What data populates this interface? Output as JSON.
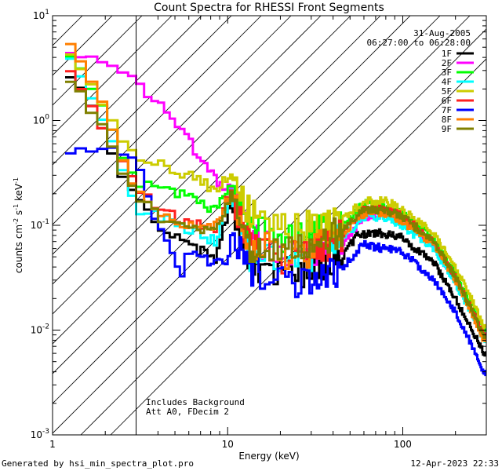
{
  "chart_data": {
    "type": "line",
    "title": "Count Spectra for RHESSI Front Segments",
    "xlabel": "Energy (keV)",
    "ylabel_parts": {
      "base": "counts cm",
      "exp1": "-2",
      "mid": " s",
      "exp2": "-1",
      "end": " keV",
      "exp3": "-1"
    },
    "xscale": "log",
    "yscale": "log",
    "xlim": [
      1,
      300
    ],
    "ylim": [
      0.001,
      10
    ],
    "x_tick_labels": [
      {
        "value": 1,
        "label": "1"
      },
      {
        "value": 10,
        "label": "10"
      },
      {
        "value": 100,
        "label": "100"
      }
    ],
    "y_tick_labels": [
      {
        "value": 0.001,
        "mant": "10",
        "exp": "-3"
      },
      {
        "value": 0.01,
        "mant": "10",
        "exp": "-2"
      },
      {
        "value": 0.1,
        "mant": "10",
        "exp": "-1"
      },
      {
        "value": 1,
        "mant": "10",
        "exp": "0"
      },
      {
        "value": 10,
        "mant": "10",
        "exp": "1"
      }
    ],
    "date": "31-Aug-2005",
    "time_range": "06:27:00 to 06:28:00",
    "hatched_region_upper_energy": 3,
    "annotations": [
      "Includes Background",
      "Att A0, FDecim 2"
    ],
    "series": [
      {
        "name": "1F",
        "color": "#000000",
        "anchors": [
          [
            1.3,
            2.7
          ],
          [
            2.0,
            0.8
          ],
          [
            2.5,
            0.28
          ],
          [
            3.0,
            0.2
          ],
          [
            4.0,
            0.1
          ],
          [
            6.0,
            0.065
          ],
          [
            8.5,
            0.048
          ],
          [
            10.5,
            0.16
          ],
          [
            13,
            0.04
          ],
          [
            20,
            0.035
          ],
          [
            30,
            0.036
          ],
          [
            45,
            0.05
          ],
          [
            55,
            0.082
          ],
          [
            70,
            0.085
          ],
          [
            100,
            0.075
          ],
          [
            150,
            0.045
          ],
          [
            200,
            0.02
          ],
          [
            250,
            0.01
          ],
          [
            290,
            0.006
          ]
        ]
      },
      {
        "name": "2F",
        "color": "#ff00ff",
        "anchors": [
          [
            1.3,
            4.3
          ],
          [
            2.0,
            3.5
          ],
          [
            2.7,
            2.8
          ],
          [
            3.5,
            1.8
          ],
          [
            5.0,
            0.95
          ],
          [
            7.0,
            0.45
          ],
          [
            9.0,
            0.25
          ],
          [
            10.5,
            0.22
          ],
          [
            13,
            0.08
          ],
          [
            20,
            0.055
          ],
          [
            30,
            0.042
          ],
          [
            45,
            0.065
          ],
          [
            60,
            0.12
          ],
          [
            80,
            0.13
          ],
          [
            100,
            0.11
          ],
          [
            150,
            0.065
          ],
          [
            200,
            0.03
          ],
          [
            250,
            0.015
          ],
          [
            290,
            0.009
          ]
        ]
      },
      {
        "name": "3F",
        "color": "#00ff00",
        "anchors": [
          [
            1.3,
            4.0
          ],
          [
            2.0,
            1.2
          ],
          [
            2.5,
            0.45
          ],
          [
            3.0,
            0.27
          ],
          [
            4.0,
            0.22
          ],
          [
            6.0,
            0.19
          ],
          [
            8.5,
            0.14
          ],
          [
            10.5,
            0.25
          ],
          [
            13,
            0.09
          ],
          [
            20,
            0.075
          ],
          [
            30,
            0.085
          ],
          [
            45,
            0.1
          ],
          [
            60,
            0.16
          ],
          [
            80,
            0.15
          ],
          [
            100,
            0.13
          ],
          [
            150,
            0.075
          ],
          [
            200,
            0.035
          ],
          [
            250,
            0.017
          ],
          [
            290,
            0.01
          ]
        ]
      },
      {
        "name": "4F",
        "color": "#00ffff",
        "anchors": [
          [
            1.3,
            4.1
          ],
          [
            2.0,
            0.9
          ],
          [
            2.5,
            0.34
          ],
          [
            3.0,
            0.14
          ],
          [
            4.0,
            0.12
          ],
          [
            6.0,
            0.09
          ],
          [
            8.5,
            0.07
          ],
          [
            10.5,
            0.2
          ],
          [
            13,
            0.05
          ],
          [
            20,
            0.045
          ],
          [
            30,
            0.05
          ],
          [
            45,
            0.075
          ],
          [
            60,
            0.12
          ],
          [
            80,
            0.12
          ],
          [
            100,
            0.1
          ],
          [
            150,
            0.06
          ],
          [
            200,
            0.028
          ],
          [
            250,
            0.014
          ],
          [
            290,
            0.008
          ]
        ]
      },
      {
        "name": "5F",
        "color": "#cccc00",
        "anchors": [
          [
            1.3,
            4.0
          ],
          [
            2.0,
            1.3
          ],
          [
            2.5,
            0.6
          ],
          [
            3.0,
            0.45
          ],
          [
            4.0,
            0.38
          ],
          [
            6.0,
            0.3
          ],
          [
            8.5,
            0.22
          ],
          [
            10.5,
            0.3
          ],
          [
            13,
            0.14
          ],
          [
            20,
            0.1
          ],
          [
            30,
            0.1
          ],
          [
            45,
            0.11
          ],
          [
            60,
            0.17
          ],
          [
            80,
            0.17
          ],
          [
            100,
            0.14
          ],
          [
            150,
            0.085
          ],
          [
            200,
            0.04
          ],
          [
            250,
            0.019
          ],
          [
            290,
            0.011
          ]
        ]
      },
      {
        "name": "6F",
        "color": "#ff2020",
        "anchors": [
          [
            1.3,
            3.0
          ],
          [
            2.0,
            0.75
          ],
          [
            2.5,
            0.4
          ],
          [
            3.0,
            0.24
          ],
          [
            4.0,
            0.14
          ],
          [
            6.0,
            0.11
          ],
          [
            8.5,
            0.09
          ],
          [
            10.5,
            0.22
          ],
          [
            13,
            0.07
          ],
          [
            20,
            0.05
          ],
          [
            30,
            0.05
          ],
          [
            45,
            0.08
          ],
          [
            60,
            0.14
          ],
          [
            80,
            0.14
          ],
          [
            100,
            0.12
          ],
          [
            150,
            0.07
          ],
          [
            200,
            0.032
          ],
          [
            250,
            0.015
          ],
          [
            290,
            0.009
          ]
        ]
      },
      {
        "name": "7F",
        "color": "#0000ff",
        "anchors": [
          [
            1.0,
            0.5
          ],
          [
            2.0,
            0.53
          ],
          [
            2.5,
            0.5
          ],
          [
            3.0,
            0.45
          ],
          [
            3.5,
            0.2
          ],
          [
            4.0,
            0.1
          ],
          [
            4.8,
            0.06
          ],
          [
            5.5,
            0.03
          ],
          [
            6.0,
            0.06
          ],
          [
            8.0,
            0.045
          ],
          [
            10.0,
            0.045
          ],
          [
            10.5,
            0.085
          ],
          [
            13,
            0.04
          ],
          [
            20,
            0.03
          ],
          [
            30,
            0.026
          ],
          [
            45,
            0.04
          ],
          [
            60,
            0.065
          ],
          [
            80,
            0.06
          ],
          [
            100,
            0.055
          ],
          [
            150,
            0.03
          ],
          [
            200,
            0.015
          ],
          [
            250,
            0.007
          ],
          [
            290,
            0.004
          ]
        ]
      },
      {
        "name": "8F",
        "color": "#ff7f00",
        "anchors": [
          [
            1.3,
            5.5
          ],
          [
            2.0,
            1.3
          ],
          [
            2.5,
            0.4
          ],
          [
            3.0,
            0.22
          ],
          [
            4.0,
            0.12
          ],
          [
            6.0,
            0.1
          ],
          [
            8.5,
            0.1
          ],
          [
            10.5,
            0.2
          ],
          [
            13,
            0.065
          ],
          [
            20,
            0.055
          ],
          [
            30,
            0.055
          ],
          [
            45,
            0.085
          ],
          [
            60,
            0.13
          ],
          [
            80,
            0.13
          ],
          [
            100,
            0.11
          ],
          [
            150,
            0.065
          ],
          [
            200,
            0.03
          ],
          [
            250,
            0.014
          ],
          [
            290,
            0.008
          ]
        ]
      },
      {
        "name": "9F",
        "color": "#808000",
        "anchors": [
          [
            1.3,
            2.4
          ],
          [
            2.0,
            0.8
          ],
          [
            2.5,
            0.33
          ],
          [
            3.0,
            0.2
          ],
          [
            4.0,
            0.12
          ],
          [
            6.0,
            0.1
          ],
          [
            8.5,
            0.09
          ],
          [
            10.5,
            0.2
          ],
          [
            13,
            0.065
          ],
          [
            20,
            0.06
          ],
          [
            30,
            0.065
          ],
          [
            45,
            0.09
          ],
          [
            60,
            0.14
          ],
          [
            80,
            0.14
          ],
          [
            100,
            0.12
          ],
          [
            150,
            0.07
          ],
          [
            200,
            0.032
          ],
          [
            250,
            0.015
          ],
          [
            290,
            0.009
          ]
        ]
      }
    ]
  },
  "footer": {
    "left": "Generated by hsi_min_spectra_plot.pro",
    "right": "12-Apr-2023 22:33"
  }
}
